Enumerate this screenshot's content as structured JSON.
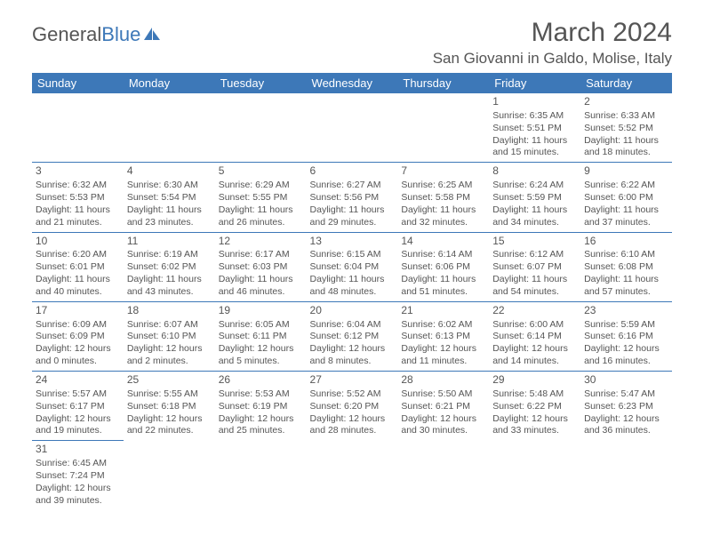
{
  "logo": {
    "word1": "General",
    "word2": "Blue"
  },
  "title": "March 2024",
  "location": "San Giovanni in Galdo, Molise, Italy",
  "daynames": [
    "Sunday",
    "Monday",
    "Tuesday",
    "Wednesday",
    "Thursday",
    "Friday",
    "Saturday"
  ],
  "colors": {
    "header_bg": "#3d78b8",
    "header_fg": "#ffffff",
    "text": "#555555",
    "rule": "#3d78b8",
    "background": "#ffffff"
  },
  "typography": {
    "title_fontsize": 30,
    "location_fontsize": 17,
    "dayname_fontsize": 13,
    "daynum_fontsize": 12,
    "cell_fontsize": 10.5
  },
  "weeks": [
    [
      null,
      null,
      null,
      null,
      null,
      {
        "n": "1",
        "sr": "Sunrise: 6:35 AM",
        "ss": "Sunset: 5:51 PM",
        "d1": "Daylight: 11 hours",
        "d2": "and 15 minutes."
      },
      {
        "n": "2",
        "sr": "Sunrise: 6:33 AM",
        "ss": "Sunset: 5:52 PM",
        "d1": "Daylight: 11 hours",
        "d2": "and 18 minutes."
      }
    ],
    [
      {
        "n": "3",
        "sr": "Sunrise: 6:32 AM",
        "ss": "Sunset: 5:53 PM",
        "d1": "Daylight: 11 hours",
        "d2": "and 21 minutes."
      },
      {
        "n": "4",
        "sr": "Sunrise: 6:30 AM",
        "ss": "Sunset: 5:54 PM",
        "d1": "Daylight: 11 hours",
        "d2": "and 23 minutes."
      },
      {
        "n": "5",
        "sr": "Sunrise: 6:29 AM",
        "ss": "Sunset: 5:55 PM",
        "d1": "Daylight: 11 hours",
        "d2": "and 26 minutes."
      },
      {
        "n": "6",
        "sr": "Sunrise: 6:27 AM",
        "ss": "Sunset: 5:56 PM",
        "d1": "Daylight: 11 hours",
        "d2": "and 29 minutes."
      },
      {
        "n": "7",
        "sr": "Sunrise: 6:25 AM",
        "ss": "Sunset: 5:58 PM",
        "d1": "Daylight: 11 hours",
        "d2": "and 32 minutes."
      },
      {
        "n": "8",
        "sr": "Sunrise: 6:24 AM",
        "ss": "Sunset: 5:59 PM",
        "d1": "Daylight: 11 hours",
        "d2": "and 34 minutes."
      },
      {
        "n": "9",
        "sr": "Sunrise: 6:22 AM",
        "ss": "Sunset: 6:00 PM",
        "d1": "Daylight: 11 hours",
        "d2": "and 37 minutes."
      }
    ],
    [
      {
        "n": "10",
        "sr": "Sunrise: 6:20 AM",
        "ss": "Sunset: 6:01 PM",
        "d1": "Daylight: 11 hours",
        "d2": "and 40 minutes."
      },
      {
        "n": "11",
        "sr": "Sunrise: 6:19 AM",
        "ss": "Sunset: 6:02 PM",
        "d1": "Daylight: 11 hours",
        "d2": "and 43 minutes."
      },
      {
        "n": "12",
        "sr": "Sunrise: 6:17 AM",
        "ss": "Sunset: 6:03 PM",
        "d1": "Daylight: 11 hours",
        "d2": "and 46 minutes."
      },
      {
        "n": "13",
        "sr": "Sunrise: 6:15 AM",
        "ss": "Sunset: 6:04 PM",
        "d1": "Daylight: 11 hours",
        "d2": "and 48 minutes."
      },
      {
        "n": "14",
        "sr": "Sunrise: 6:14 AM",
        "ss": "Sunset: 6:06 PM",
        "d1": "Daylight: 11 hours",
        "d2": "and 51 minutes."
      },
      {
        "n": "15",
        "sr": "Sunrise: 6:12 AM",
        "ss": "Sunset: 6:07 PM",
        "d1": "Daylight: 11 hours",
        "d2": "and 54 minutes."
      },
      {
        "n": "16",
        "sr": "Sunrise: 6:10 AM",
        "ss": "Sunset: 6:08 PM",
        "d1": "Daylight: 11 hours",
        "d2": "and 57 minutes."
      }
    ],
    [
      {
        "n": "17",
        "sr": "Sunrise: 6:09 AM",
        "ss": "Sunset: 6:09 PM",
        "d1": "Daylight: 12 hours",
        "d2": "and 0 minutes."
      },
      {
        "n": "18",
        "sr": "Sunrise: 6:07 AM",
        "ss": "Sunset: 6:10 PM",
        "d1": "Daylight: 12 hours",
        "d2": "and 2 minutes."
      },
      {
        "n": "19",
        "sr": "Sunrise: 6:05 AM",
        "ss": "Sunset: 6:11 PM",
        "d1": "Daylight: 12 hours",
        "d2": "and 5 minutes."
      },
      {
        "n": "20",
        "sr": "Sunrise: 6:04 AM",
        "ss": "Sunset: 6:12 PM",
        "d1": "Daylight: 12 hours",
        "d2": "and 8 minutes."
      },
      {
        "n": "21",
        "sr": "Sunrise: 6:02 AM",
        "ss": "Sunset: 6:13 PM",
        "d1": "Daylight: 12 hours",
        "d2": "and 11 minutes."
      },
      {
        "n": "22",
        "sr": "Sunrise: 6:00 AM",
        "ss": "Sunset: 6:14 PM",
        "d1": "Daylight: 12 hours",
        "d2": "and 14 minutes."
      },
      {
        "n": "23",
        "sr": "Sunrise: 5:59 AM",
        "ss": "Sunset: 6:16 PM",
        "d1": "Daylight: 12 hours",
        "d2": "and 16 minutes."
      }
    ],
    [
      {
        "n": "24",
        "sr": "Sunrise: 5:57 AM",
        "ss": "Sunset: 6:17 PM",
        "d1": "Daylight: 12 hours",
        "d2": "and 19 minutes."
      },
      {
        "n": "25",
        "sr": "Sunrise: 5:55 AM",
        "ss": "Sunset: 6:18 PM",
        "d1": "Daylight: 12 hours",
        "d2": "and 22 minutes."
      },
      {
        "n": "26",
        "sr": "Sunrise: 5:53 AM",
        "ss": "Sunset: 6:19 PM",
        "d1": "Daylight: 12 hours",
        "d2": "and 25 minutes."
      },
      {
        "n": "27",
        "sr": "Sunrise: 5:52 AM",
        "ss": "Sunset: 6:20 PM",
        "d1": "Daylight: 12 hours",
        "d2": "and 28 minutes."
      },
      {
        "n": "28",
        "sr": "Sunrise: 5:50 AM",
        "ss": "Sunset: 6:21 PM",
        "d1": "Daylight: 12 hours",
        "d2": "and 30 minutes."
      },
      {
        "n": "29",
        "sr": "Sunrise: 5:48 AM",
        "ss": "Sunset: 6:22 PM",
        "d1": "Daylight: 12 hours",
        "d2": "and 33 minutes."
      },
      {
        "n": "30",
        "sr": "Sunrise: 5:47 AM",
        "ss": "Sunset: 6:23 PM",
        "d1": "Daylight: 12 hours",
        "d2": "and 36 minutes."
      }
    ],
    [
      {
        "n": "31",
        "sr": "Sunrise: 6:45 AM",
        "ss": "Sunset: 7:24 PM",
        "d1": "Daylight: 12 hours",
        "d2": "and 39 minutes."
      },
      null,
      null,
      null,
      null,
      null,
      null
    ]
  ]
}
